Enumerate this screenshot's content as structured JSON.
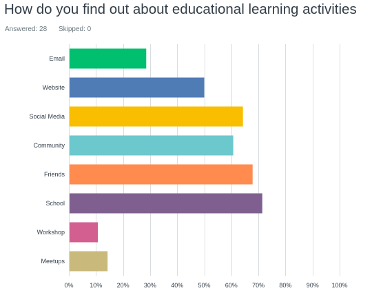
{
  "header": {
    "title": "How do you find out about educational learning activities",
    "answered": "Answered: 28",
    "skipped": "Skipped: 0"
  },
  "chart_data": {
    "type": "bar",
    "orientation": "horizontal",
    "categories": [
      "Email",
      "Website",
      "Social Media",
      "Community",
      "Friends",
      "School",
      "Workshop",
      "Meetups"
    ],
    "values": [
      28.57,
      50.0,
      64.29,
      60.71,
      67.86,
      71.43,
      10.71,
      14.29
    ],
    "colors": [
      "#00bf6f",
      "#507cb6",
      "#f9be00",
      "#6bc8cd",
      "#ff8b4f",
      "#7f5f90",
      "#d25f90",
      "#c9b97b"
    ],
    "xlim": [
      0,
      100
    ],
    "x_ticks": [
      "0%",
      "10%",
      "20%",
      "30%",
      "40%",
      "50%",
      "60%",
      "70%",
      "80%",
      "90%",
      "100%"
    ],
    "grid": true
  }
}
